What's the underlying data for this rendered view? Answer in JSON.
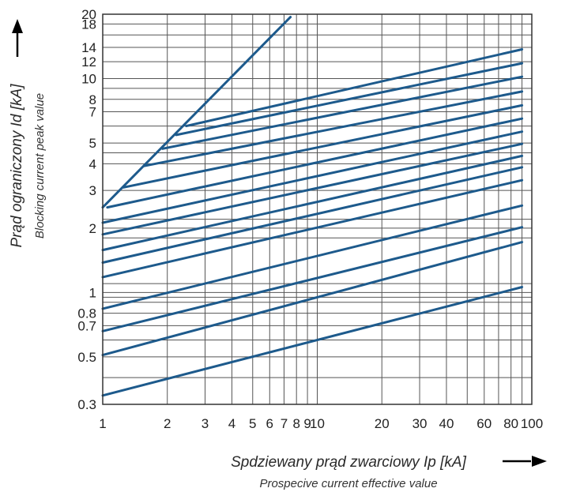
{
  "chart_data": {
    "type": "line",
    "x_scale": "log",
    "y_scale": "log",
    "xlim": [
      1,
      100
    ],
    "ylim": [
      0.3,
      20
    ],
    "grid": true,
    "xlabel": "Spdziewany prąd zwarciowy Ip [kA]",
    "xlabel_sub": "Prospecive current effective value",
    "ylabel": "Prąd ograniczony Id [kA]",
    "ylabel_sub": "Blocking current peak value",
    "x_ticks": [
      {
        "v": 1,
        "t": "1"
      },
      {
        "v": 2,
        "t": "2"
      },
      {
        "v": 3,
        "t": "3"
      },
      {
        "v": 4,
        "t": "4"
      },
      {
        "v": 5,
        "t": "5"
      },
      {
        "v": 6,
        "t": "6"
      },
      {
        "v": 7,
        "t": "7"
      },
      {
        "v": 8,
        "t": "8"
      },
      {
        "v": 9,
        "t": "9"
      },
      {
        "v": 10,
        "t": "10"
      },
      {
        "v": 20,
        "t": "20"
      },
      {
        "v": 30,
        "t": "30"
      },
      {
        "v": 40,
        "t": "40"
      },
      {
        "v": 60,
        "t": "60"
      },
      {
        "v": 80,
        "t": "80"
      },
      {
        "v": 100,
        "t": "100"
      }
    ],
    "y_ticks": [
      {
        "v": 0.3,
        "t": "0.3"
      },
      {
        "v": 0.5,
        "t": "0.5"
      },
      {
        "v": 0.7,
        "t": "0.7"
      },
      {
        "v": 0.8,
        "t": "0.8"
      },
      {
        "v": 1,
        "t": "1"
      },
      {
        "v": 2,
        "t": "2"
      },
      {
        "v": 3,
        "t": "3"
      },
      {
        "v": 4,
        "t": "4"
      },
      {
        "v": 5,
        "t": "5"
      },
      {
        "v": 7,
        "t": "7"
      },
      {
        "v": 8,
        "t": "8"
      },
      {
        "v": 10,
        "t": "10"
      },
      {
        "v": 12,
        "t": "12"
      },
      {
        "v": 14,
        "t": "14"
      },
      {
        "v": 18,
        "t": "18"
      },
      {
        "v": 20,
        "t": "20"
      }
    ],
    "extra_gridlines_x": [
      50,
      70,
      90
    ],
    "extra_gridlines_y": [
      0.4,
      0.6,
      0.9,
      0.95,
      1.1,
      1.8,
      2.2,
      4.5,
      6,
      9,
      16
    ],
    "envelope": {
      "x": [
        1,
        7.5
      ],
      "y": [
        2.5,
        19.4
      ]
    },
    "series": [
      {
        "values": [
          [
            1,
            0.33
          ],
          [
            90,
            1.06
          ]
        ]
      },
      {
        "values": [
          [
            1,
            0.51
          ],
          [
            90,
            1.72
          ]
        ]
      },
      {
        "values": [
          [
            1,
            0.66
          ],
          [
            90,
            2.02
          ]
        ]
      },
      {
        "values": [
          [
            1,
            0.84
          ],
          [
            90,
            2.55
          ]
        ]
      },
      {
        "values": [
          [
            1,
            1.18
          ],
          [
            90,
            3.35
          ]
        ]
      },
      {
        "values": [
          [
            1,
            1.38
          ],
          [
            90,
            3.85
          ]
        ]
      },
      {
        "values": [
          [
            1,
            1.58
          ],
          [
            90,
            4.35
          ]
        ]
      },
      {
        "values": [
          [
            1,
            1.87
          ],
          [
            90,
            4.95
          ]
        ]
      },
      {
        "values": [
          [
            1,
            2.12
          ],
          [
            90,
            5.65
          ]
        ]
      },
      {
        "values": [
          [
            1.05,
            2.5
          ],
          [
            90,
            6.5
          ]
        ]
      },
      {
        "values": [
          [
            1.25,
            3.1
          ],
          [
            90,
            7.5
          ]
        ]
      },
      {
        "values": [
          [
            1.55,
            3.9
          ],
          [
            90,
            8.7
          ]
        ]
      },
      {
        "values": [
          [
            1.9,
            4.7
          ],
          [
            90,
            10.2
          ]
        ]
      },
      {
        "values": [
          [
            2.2,
            5.45
          ],
          [
            90,
            11.8
          ]
        ]
      },
      {
        "values": [
          [
            2.45,
            6.0
          ],
          [
            90,
            13.7
          ]
        ]
      }
    ],
    "colors": {
      "line": "#1d5a8c",
      "grid": "#555555"
    }
  }
}
